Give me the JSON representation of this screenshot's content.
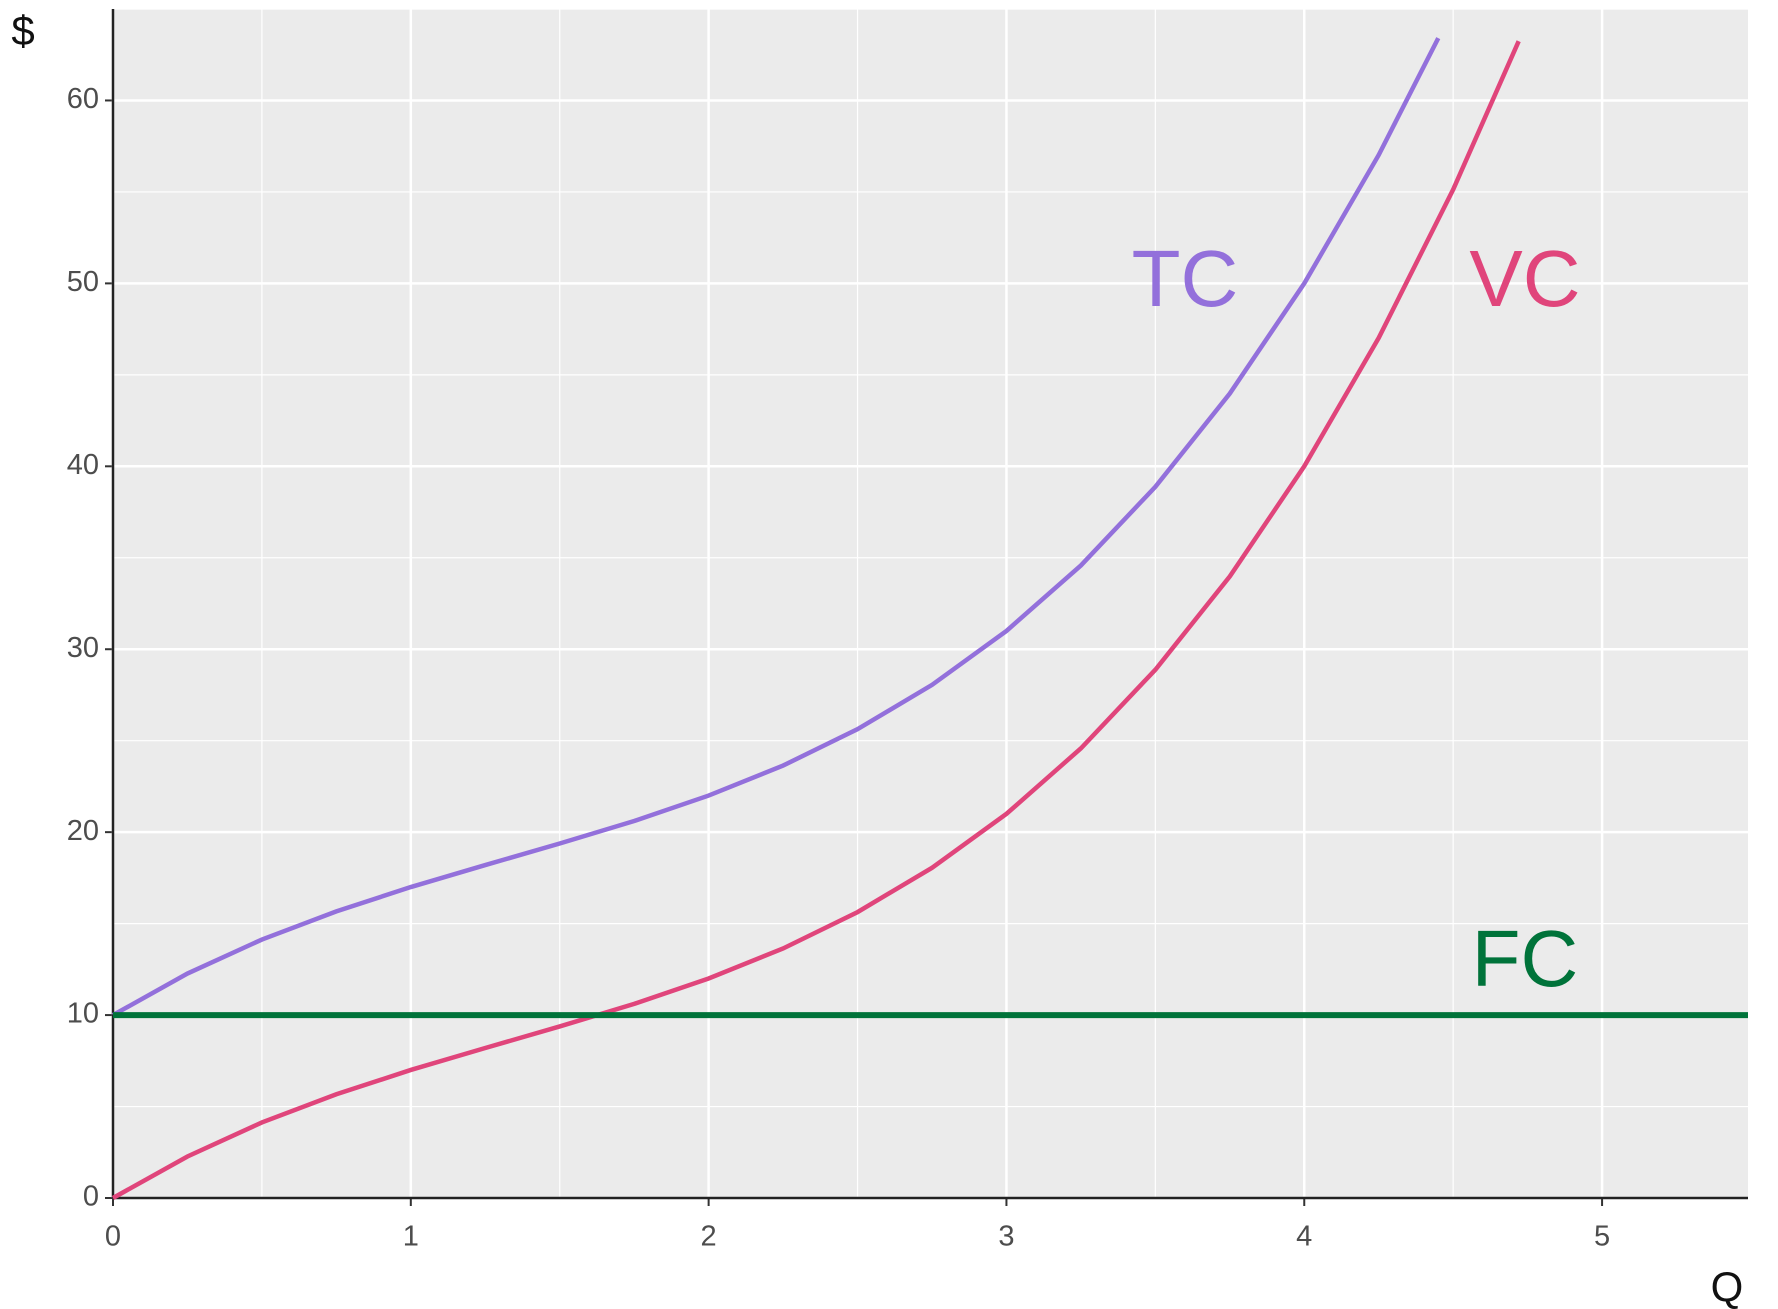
{
  "chart_data": {
    "type": "line",
    "x_label": "Q",
    "y_label": "$",
    "xlim": [
      0,
      5.49
    ],
    "ylim": [
      0,
      65
    ],
    "xticks": [
      0,
      1,
      2,
      3,
      4,
      5
    ],
    "yticks": [
      0,
      10,
      20,
      30,
      40,
      50,
      60
    ],
    "grid": true,
    "series": [
      {
        "name": "TC",
        "color": "#9370db",
        "x": [
          0,
          0.25,
          0.5,
          0.75,
          1,
          1.25,
          1.5,
          1.75,
          2,
          2.25,
          2.5,
          2.75,
          3,
          3.25,
          3.5,
          3.75,
          4,
          4.25,
          4.45
        ],
        "values": [
          10,
          12.27,
          14.13,
          15.67,
          17,
          18.2,
          19.38,
          20.61,
          22,
          23.64,
          25.63,
          28.05,
          31,
          34.58,
          38.88,
          43.98,
          50,
          57.02,
          63.41
        ]
      },
      {
        "name": "VC",
        "color": "#e0457b",
        "x": [
          0,
          0.25,
          0.5,
          0.75,
          1,
          1.25,
          1.5,
          1.75,
          2,
          2.25,
          2.5,
          2.75,
          3,
          3.25,
          3.5,
          3.75,
          4,
          4.25,
          4.5,
          4.72
        ],
        "values": [
          0,
          2.27,
          4.13,
          5.67,
          7,
          8.2,
          9.38,
          10.61,
          12,
          13.64,
          15.63,
          18.05,
          21,
          24.58,
          28.88,
          33.98,
          40,
          47.02,
          55.13,
          63.24
        ]
      },
      {
        "name": "FC",
        "color": "#00733a",
        "x": [
          0,
          5.49
        ],
        "values": [
          10,
          10
        ]
      }
    ]
  }
}
